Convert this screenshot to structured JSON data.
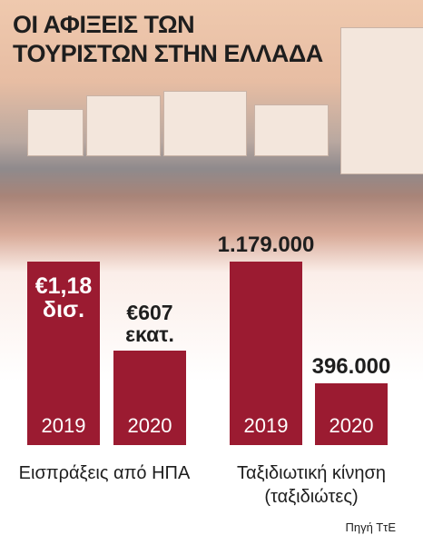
{
  "header": {
    "title": [
      "ΟΙ ΑΦΙΞΕΙΣ ΤΩΝ",
      "ΤΟΥΡΙΣΤΩΝ ΣΤΗΝ ΕΛΛΑΔΑ"
    ]
  },
  "chart_data": [
    {
      "type": "bar",
      "x_label": "Εισπράξεις από ΗΠΑ",
      "categories": [
        "2019",
        "2020"
      ],
      "values": [
        1180,
        607
      ],
      "value_labels": [
        "€1,18 δισ.",
        "€607 εκατ."
      ],
      "color": "#9b1b31"
    },
    {
      "type": "bar",
      "x_label": "Ταξιδιωτική κίνηση (ταξιδιώτες)",
      "categories": [
        "2019",
        "2020"
      ],
      "values": [
        1179000,
        396000
      ],
      "value_labels": [
        "1.179.000",
        "396.000"
      ],
      "color": "#9b1b31"
    }
  ],
  "source": "Πηγή ΤτΕ"
}
